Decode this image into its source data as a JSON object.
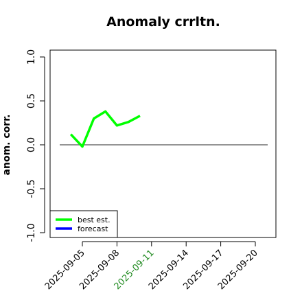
{
  "chart_data": {
    "type": "line",
    "title": "Anomaly crrltn.",
    "ylabel": "anom. corr.",
    "x": [
      "2025-09-04",
      "2025-09-05",
      "2025-09-06",
      "2025-09-07",
      "2025-09-08",
      "2025-09-09",
      "2025-09-10"
    ],
    "series": [
      {
        "name": "best est.",
        "color": "#00ff00",
        "values": [
          0.12,
          -0.02,
          0.3,
          0.38,
          0.22,
          0.26,
          0.33
        ]
      },
      {
        "name": "forecast",
        "color": "#0000ff",
        "values": [
          null,
          null,
          null,
          null,
          null,
          null,
          null
        ]
      }
    ],
    "xlim": [
      "2025-09-02",
      "2025-09-22"
    ],
    "xticks": [
      "2025-09-05",
      "2025-09-08",
      "2025-09-11",
      "2025-09-14",
      "2025-09-17",
      "2025-09-20"
    ],
    "xtick_colors": [
      "#000000",
      "#000000",
      "#228b22",
      "#000000",
      "#000000",
      "#000000"
    ],
    "ylim": [
      -1,
      1
    ],
    "yticks": [
      {
        "value": -1,
        "label": "-1.0"
      },
      -0.5,
      {
        "value": 0,
        "label": "0.0"
      },
      0.5,
      {
        "value": 1,
        "label": "1.0"
      }
    ],
    "hline": 0,
    "legend": "bottomleft"
  }
}
